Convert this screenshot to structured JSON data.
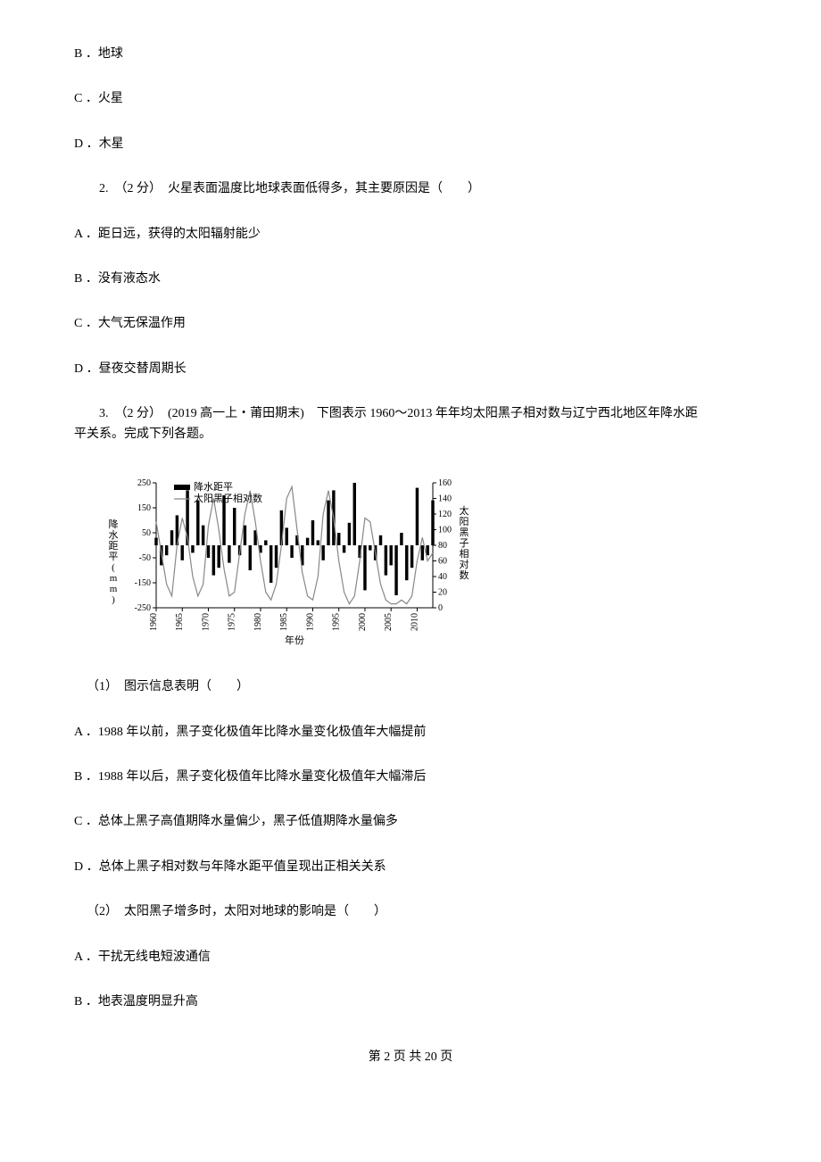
{
  "options_top": {
    "b": "B ．地球",
    "c": "C ．火星",
    "d": "D ．木星"
  },
  "q2": {
    "stem": "2.　（2 分）　火星表面温度比地球表面低得多，其主要原因是（　　）",
    "a": "A ．距日远，获得的太阳辐射能少",
    "b": "B ．没有液态水",
    "c": "C ．大气无保温作用",
    "d": "D ．昼夜交替周期长"
  },
  "q3": {
    "line1": "3.　（2 分）　(2019 高一上・莆田期末)　下图表示 1960～2013 年年均太阳黑子相对数与辽宁西北地区年降水距",
    "line2": "平关系。完成下列各题。",
    "sub1": "（1）　图示信息表明（　　）",
    "sub1_a": "A ．1988 年以前，黑子变化极值年比降水量变化极值年大幅提前",
    "sub1_b": "B ．1988 年以后，黑子变化极值年比降水量变化极值年大幅滞后",
    "sub1_c": "C ．总体上黑子高值期降水量偏少，黑子低值期降水量偏多",
    "sub1_d": "D ．总体上黑子相对数与年降水距平值呈现出正相关关系",
    "sub2": "（2）　太阳黑子增多时，太阳对地球的影响是（　　）",
    "sub2_a": "A ．干扰无线电短波通信",
    "sub2_b": "B ．地表温度明显升高"
  },
  "chart": {
    "left_axis_label": "降水距平(mm)",
    "right_axis_label": "太阳黑子相对数",
    "x_axis_label": "年份",
    "legend_precip": "降水距平",
    "legend_sunspot": "太阳黑子相对数",
    "left_ticks": [
      "250",
      "150",
      "50",
      "-50",
      "-150",
      "-250"
    ],
    "right_ticks": [
      "160",
      "140",
      "120",
      "100",
      "80",
      "60",
      "40",
      "20",
      "0"
    ],
    "years": [
      "1960",
      "1965",
      "1970",
      "1975",
      "1980",
      "1985",
      "1990",
      "1995",
      "2000",
      "2005",
      "2010"
    ],
    "sunspot_values": [
      110,
      70,
      30,
      15,
      80,
      115,
      90,
      40,
      15,
      30,
      105,
      140,
      100,
      50,
      15,
      20,
      70,
      120,
      150,
      110,
      60,
      20,
      10,
      30,
      80,
      140,
      155,
      100,
      45,
      15,
      10,
      40,
      120,
      150,
      115,
      60,
      20,
      5,
      15,
      60,
      115,
      110,
      70,
      30,
      10,
      5,
      5,
      10,
      5,
      15,
      60,
      90,
      60,
      70
    ],
    "precip_values": [
      30,
      -80,
      -40,
      60,
      120,
      -60,
      220,
      -30,
      180,
      80,
      -50,
      -120,
      -90,
      200,
      -70,
      150,
      -40,
      80,
      -100,
      60,
      -30,
      20,
      -150,
      -90,
      140,
      70,
      -50,
      40,
      -80,
      30,
      100,
      20,
      -60,
      180,
      220,
      50,
      -30,
      90,
      250,
      -50,
      -180,
      -20,
      -60,
      40,
      -120,
      -80,
      -200,
      50,
      -140,
      -90,
      230,
      -60,
      -40,
      180
    ],
    "colors": {
      "bar": "#000000",
      "line": "#888888",
      "axis": "#000000",
      "tick": "#000000"
    },
    "left_ylim": [
      -250,
      250
    ],
    "right_ylim": [
      0,
      160
    ],
    "year_range": [
      1960,
      2013
    ]
  },
  "footer": "第 2 页 共 20 页"
}
